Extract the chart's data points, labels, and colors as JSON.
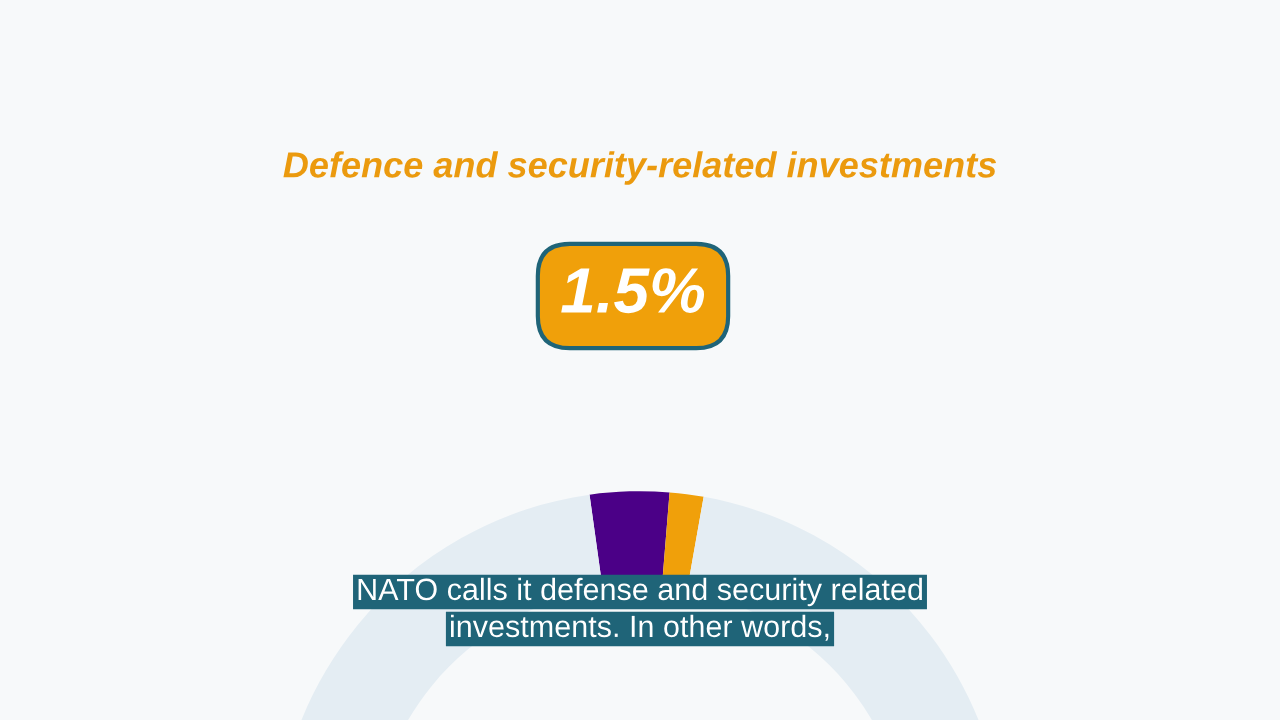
{
  "chart_data": {
    "type": "donut",
    "title": "Defence and security-related investments",
    "categories": [
      null,
      null,
      null
    ],
    "values": [
      3.5,
      1.5,
      95
    ],
    "colors": [
      "#4b0087",
      "#f0a00a",
      "#e4edf3"
    ],
    "value_labels": [
      null,
      "1.5%",
      null
    ],
    "annotations": [
      "NATO calls it defense and security related",
      "investments. In other words,"
    ]
  }
}
